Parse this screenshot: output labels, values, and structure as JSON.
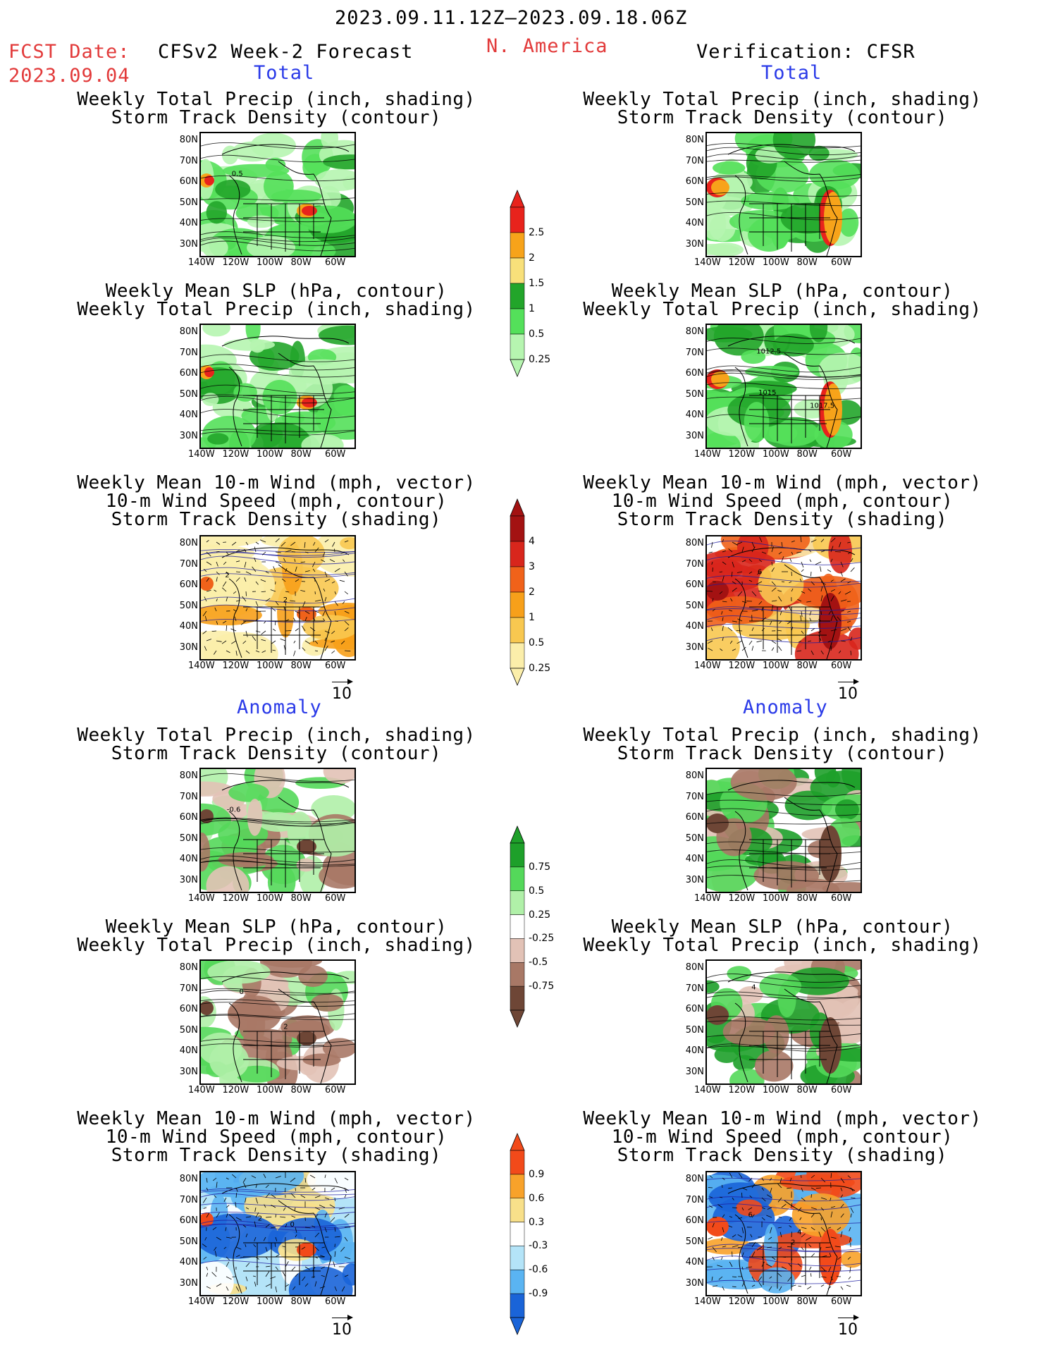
{
  "header": {
    "period": "2023.09.11.12Z–2023.09.18.06Z",
    "fcst_label": "FCST Date:",
    "fcst_date": "2023.09.04",
    "model": "CFSv2 Week-2 Forecast",
    "region": "N. America",
    "verification": "Verification: CFSR"
  },
  "sections": {
    "total": "Total",
    "anomaly": "Anomaly"
  },
  "titles": {
    "precip_storm": [
      "Weekly Total Precip (inch, shading)",
      "Storm Track Density (contour)"
    ],
    "slp_precip": [
      "Weekly Mean SLP (hPa, contour)",
      "Weekly Total Precip (inch, shading)"
    ],
    "wind_storm": [
      "Weekly Mean 10-m Wind (mph, vector)",
      "10-m Wind Speed (mph, contour)",
      "Storm Track Density (shading)"
    ]
  },
  "axes": {
    "lat": [
      "80N",
      "70N",
      "60N",
      "50N",
      "40N",
      "30N"
    ],
    "lon": [
      "140W",
      "120W",
      "100W",
      "80W",
      "60W"
    ]
  },
  "vector_ref": "10",
  "colorbars": {
    "total_precip": {
      "labels": [
        "2.5",
        "2",
        "1.5",
        "1",
        "0.5",
        "0.25"
      ],
      "colors": [
        "#e8231c",
        "#f7a31a",
        "#f8e07a",
        "#22a52a",
        "#54e05a",
        "#b6f5b0"
      ]
    },
    "total_storm": {
      "labels": [
        "4",
        "3",
        "2",
        "1",
        "0.5",
        "0.25"
      ],
      "colors": [
        "#a31212",
        "#d8261c",
        "#f0621a",
        "#f7a01a",
        "#f8c850",
        "#fbeeaa"
      ]
    },
    "anom_precip": {
      "labels": [
        "0.75",
        "0.5",
        "0.25",
        "-0.25",
        "-0.5",
        "-0.75"
      ],
      "colors": [
        "#1ea02a",
        "#54d85a",
        "#b0f0a8",
        "#ffffff",
        "#e2c2b6",
        "#a87866",
        "#6e4636"
      ]
    },
    "anom_storm": {
      "labels": [
        "0.9",
        "0.6",
        "0.3",
        "-0.3",
        "-0.6",
        "-0.9"
      ],
      "colors": [
        "#f24a1a",
        "#f8a22a",
        "#f8e08a",
        "#ffffff",
        "#b4e4f8",
        "#5ab4f2",
        "#1a64d8"
      ]
    }
  },
  "contour_labels": {
    "fcst_total_precip": "0.5",
    "cfsr_total_slp": [
      "1012.5",
      "1015",
      "1017.5"
    ],
    "fcst_total_wind": [
      "2",
      "2"
    ],
    "cfsr_total_wind": [
      "6"
    ],
    "fcst_anom_precip": "-0.6",
    "fcst_anom_slp": [
      "0",
      "2"
    ],
    "cfsr_anom_slp": "4",
    "fcst_anom_wind": [
      "2",
      "0"
    ],
    "cfsr_anom_wind": [
      "6",
      "4",
      "2"
    ]
  }
}
